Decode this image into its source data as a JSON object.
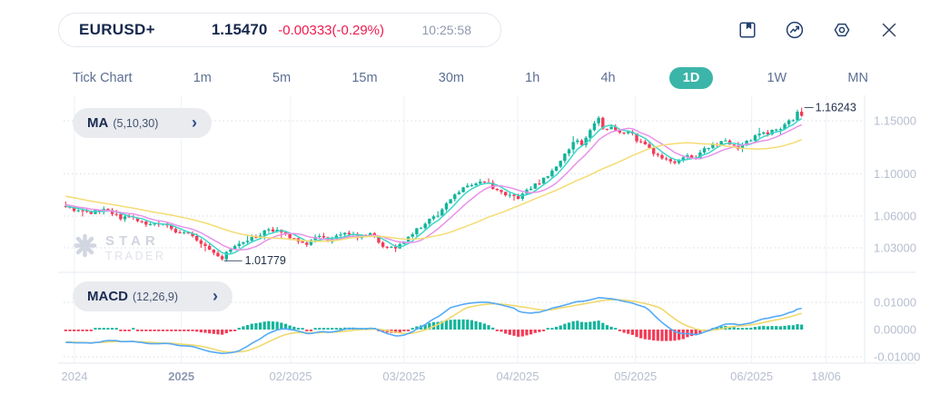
{
  "header": {
    "symbol": "EURUSD+",
    "price": "1.15470",
    "change": "-0.00333(-0.29%)",
    "time": "10:25:58",
    "icons": [
      "save-icon",
      "indicators-icon",
      "settings-icon",
      "close-icon"
    ]
  },
  "timeframes": {
    "items": [
      {
        "label": "Tick Chart"
      },
      {
        "label": "1m"
      },
      {
        "label": "5m"
      },
      {
        "label": "15m"
      },
      {
        "label": "30m"
      },
      {
        "label": "1h"
      },
      {
        "label": "4h"
      },
      {
        "label": "1D"
      },
      {
        "label": "1W"
      },
      {
        "label": "MN"
      }
    ],
    "active": "1D"
  },
  "indicators": {
    "ma": {
      "name": "MA",
      "params": "(5,10,30)",
      "chevron": "›"
    },
    "macd": {
      "name": "MACD",
      "params": "(12,26,9)",
      "chevron": "›"
    }
  },
  "watermark": {
    "line1": "STAR",
    "line2": "TRADER"
  },
  "colors": {
    "accent_teal": "#3cb5a9",
    "navy": "#16294d",
    "change_red": "#f01a4e",
    "up": "#12b49a",
    "down": "#f43a56",
    "grid_dotted": "#d8dde9",
    "grid_vertical": "#eef1f6",
    "axis_line": "#e4e8f0",
    "tick_text": "#b6becf"
  },
  "chart_data": {
    "type": "candlestick",
    "symbol": "EURUSD+",
    "timeframe": "1D",
    "legend_position": "none",
    "grid": true,
    "price_axis": {
      "side": "right",
      "ticks": [
        {
          "label": "1.15000",
          "value": 1.15
        },
        {
          "label": "1.10000",
          "value": 1.1
        },
        {
          "label": "1.06000",
          "value": 1.06
        },
        {
          "label": "1.03000",
          "value": 1.03
        }
      ],
      "range": [
        1.0035,
        1.1745
      ]
    },
    "x_axis": {
      "ticks": [
        {
          "label": "2024",
          "pos": 0.0136
        },
        {
          "label": "2025",
          "pos": 0.147,
          "emphasis": true
        },
        {
          "label": "02/2025",
          "pos": 0.2834
        },
        {
          "label": "03/2025",
          "pos": 0.425
        },
        {
          "label": "04/2025",
          "pos": 0.5669
        },
        {
          "label": "05/2025",
          "pos": 0.714
        },
        {
          "label": "06/2025",
          "pos": 0.859
        },
        {
          "label": "18/06",
          "pos": 0.952
        }
      ]
    },
    "annotations": {
      "last_high": {
        "label": "1.16243",
        "value": 1.16243
      },
      "swing_low": {
        "label": "1.01779",
        "value": 1.01779
      }
    },
    "overlays": [
      {
        "name": "MA5",
        "period": 5,
        "color": "#3ed6ca"
      },
      {
        "name": "MA10",
        "period": 10,
        "color": "#e792ea"
      },
      {
        "name": "MA30",
        "period": 30,
        "color": "#f4dc72"
      }
    ],
    "macd": {
      "fast": 12,
      "slow": 26,
      "signal": 9,
      "line_color": "#55aaf7",
      "signal_color": "#f0d96e",
      "axis_ticks": [
        {
          "label": "0.01000",
          "value": 0.01
        },
        {
          "label": "0.00000",
          "value": 0.0
        },
        {
          "label": "-0.01000",
          "value": -0.01
        }
      ]
    },
    "series": {
      "count": 175,
      "warmup": 35,
      "last_close": 1.1547,
      "close_anchors": [
        [
          -35,
          1.094
        ],
        [
          -25,
          1.087
        ],
        [
          -15,
          1.079
        ],
        [
          -8,
          1.0735
        ],
        [
          -1,
          1.0685
        ],
        [
          0,
          1.068
        ],
        [
          3,
          1.0655
        ],
        [
          6,
          1.063
        ],
        [
          9,
          1.0665
        ],
        [
          13,
          1.058
        ],
        [
          16,
          1.0595
        ],
        [
          19,
          1.052
        ],
        [
          22,
          1.054
        ],
        [
          25,
          1.047
        ],
        [
          29,
          1.043
        ],
        [
          32,
          1.034
        ],
        [
          35,
          1.026
        ],
        [
          37,
          1.0205
        ],
        [
          39,
          1.028
        ],
        [
          41,
          1.034
        ],
        [
          44,
          1.04
        ],
        [
          48,
          1.047
        ],
        [
          51,
          1.0455
        ],
        [
          54,
          1.038
        ],
        [
          57,
          1.0335
        ],
        [
          60,
          1.0425
        ],
        [
          62,
          1.037
        ],
        [
          66,
          1.0445
        ],
        [
          69,
          1.039
        ],
        [
          72,
          1.0435
        ],
        [
          75,
          1.0315
        ],
        [
          78,
          1.0285
        ],
        [
          81,
          1.04
        ],
        [
          84,
          1.05
        ],
        [
          88,
          1.062
        ],
        [
          91,
          1.076
        ],
        [
          94,
          1.0855
        ],
        [
          96,
          1.091
        ],
        [
          99,
          1.0935
        ],
        [
          101,
          1.0875
        ],
        [
          104,
          1.08
        ],
        [
          107,
          1.0775
        ],
        [
          109,
          1.084
        ],
        [
          112,
          1.092
        ],
        [
          115,
          1.101
        ],
        [
          117,
          1.112
        ],
        [
          119,
          1.124
        ],
        [
          120,
          1.132
        ],
        [
          122,
          1.1285
        ],
        [
          123,
          1.1345
        ],
        [
          125,
          1.1455
        ],
        [
          126,
          1.1515
        ],
        [
          127,
          1.1405
        ],
        [
          129,
          1.1435
        ],
        [
          131,
          1.1375
        ],
        [
          133,
          1.1415
        ],
        [
          135,
          1.1315
        ],
        [
          137,
          1.1265
        ],
        [
          139,
          1.1195
        ],
        [
          141,
          1.1155
        ],
        [
          143,
          1.1115
        ],
        [
          145,
          1.1125
        ],
        [
          147,
          1.1185
        ],
        [
          149,
          1.1155
        ],
        [
          151,
          1.1235
        ],
        [
          153,
          1.1275
        ],
        [
          155,
          1.1315
        ],
        [
          157,
          1.1285
        ],
        [
          159,
          1.1255
        ],
        [
          161,
          1.1315
        ],
        [
          163,
          1.1355
        ],
        [
          165,
          1.1385
        ],
        [
          167,
          1.1395
        ],
        [
          169,
          1.1435
        ],
        [
          171,
          1.1505
        ],
        [
          172,
          1.1505
        ],
        [
          173,
          1.1585
        ],
        [
          174,
          1.1547
        ]
      ]
    }
  }
}
